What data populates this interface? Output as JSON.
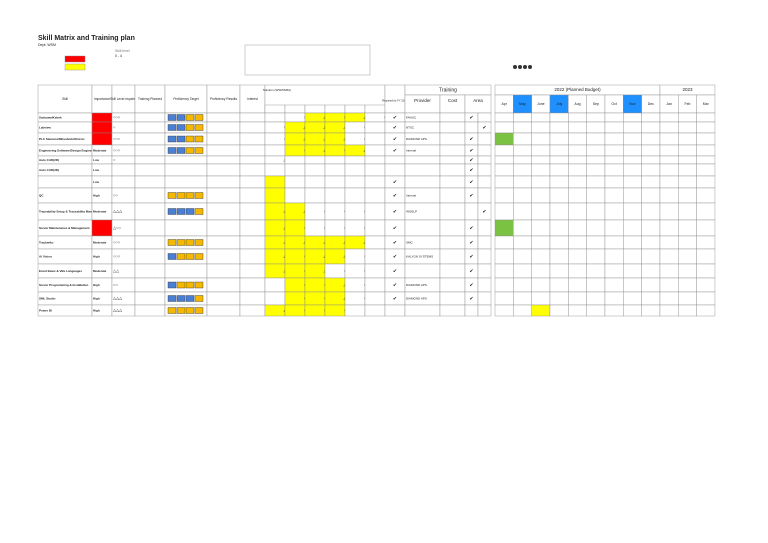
{
  "header": {
    "title": "Skill Matrix and Training plan",
    "dept": "Dept: WSM"
  },
  "legend": {
    "level_title": "Skill level",
    "level_range": "0 - 4"
  },
  "columns": {
    "skill": "Skill",
    "importance": "Importance",
    "level": "Skill Level required",
    "planned": "Training Planned",
    "target": "Proficiency Target",
    "results": "Proficiency Results",
    "interest": "Interest",
    "solution": "Solution (WSM/SMA)",
    "required": "Required for FY 22/23",
    "training": "Training",
    "provider": "Provider",
    "cost": "Cost",
    "area": "Area"
  },
  "calendar": {
    "y2022": "2022 (Planned Budget)",
    "y2023": "2023",
    "months": [
      "Apr",
      "May",
      "June",
      "July",
      "Aug",
      "Sep",
      "Oct",
      "Nov",
      "Dec",
      "Jan",
      "Feb",
      "Mar"
    ]
  },
  "rows": [
    {
      "skill": "Sadsawa/Kebek",
      "importance": null,
      "level": "○○○",
      "solution": [
        null,
        "○",
        "△",
        "○",
        "△",
        "○"
      ],
      "required": "✔",
      "provider": "FANUC",
      "area": [
        "✔",
        null
      ]
    },
    {
      "skill": "Labview",
      "importance": null,
      "level": "○",
      "solution": [
        "○",
        "△",
        "△",
        "△",
        "○",
        null
      ],
      "required": "✔",
      "provider": "NTSC",
      "area": [
        null,
        "✔"
      ]
    },
    {
      "skill": "PLC Siemens/Mitsubishi/Omron",
      "importance": null,
      "level": "○○○",
      "solution": [
        "○",
        "△",
        "△",
        "△",
        "○",
        null
      ],
      "required": "✔",
      "provider": "DIAMOND APS",
      "area": [
        "✔",
        null
      ]
    },
    {
      "skill": "Engineering Software/Design Engines",
      "importance": "Moderate",
      "level": "○○○",
      "solution": [
        null,
        "○",
        "△",
        "○",
        "△",
        null
      ],
      "required": "✔",
      "provider": "Internal",
      "area": [
        "✔",
        null
      ]
    },
    {
      "skill": "Auto CAD(2D)",
      "importance": "Low",
      "level": "○",
      "solution": [
        "△",
        null,
        null,
        null,
        null,
        null
      ],
      "required": null,
      "provider": null,
      "area": [
        "✔",
        null
      ]
    },
    {
      "skill": "Auto CAD(3D)",
      "importance": "Low",
      "level": null,
      "solution": [
        null,
        null,
        null,
        null,
        null,
        null
      ],
      "required": null,
      "provider": null,
      "area": [
        "✔",
        null
      ]
    },
    {
      "skill": null,
      "importance": "Low",
      "level": null,
      "solution": [
        null,
        null,
        null,
        null,
        null,
        null
      ],
      "required": "✔",
      "provider": null,
      "area": [
        "✔",
        null
      ]
    },
    {
      "skill": "QC",
      "importance": "High",
      "level": "○○",
      "solution": [
        null,
        null,
        null,
        null,
        null,
        null
      ],
      "required": "✔",
      "provider": "Internal",
      "area": [
        "✔",
        null
      ]
    },
    {
      "skill": "Traceability Setup & Traceability Management",
      "importance": "Moderate",
      "level": "△△△",
      "solution": [
        "△",
        "△",
        "○",
        "○",
        "○",
        null
      ],
      "required": "✔",
      "provider": "INGELP",
      "area": [
        null,
        "✔"
      ]
    },
    {
      "skill": "Server Maintenance & Management",
      "importance": null,
      "level": "△○○",
      "solution": [
        "△",
        "○",
        "○",
        "○",
        "○",
        null
      ],
      "required": "✔",
      "provider": null,
      "area": [
        "✔",
        null
      ]
    },
    {
      "skill": "Trackwiko",
      "importance": "Moderate",
      "level": "○○○",
      "solution": [
        "△",
        "△",
        "△",
        "△",
        "△",
        null
      ],
      "required": "✔",
      "provider": "SMC",
      "area": [
        "✔",
        null
      ]
    },
    {
      "skill": "AI Vision",
      "importance": "High",
      "level": "○○○",
      "solution": [
        "△",
        "○",
        "△",
        "△",
        "○",
        null
      ],
      "required": "✔",
      "provider": "KALYON SYSTEMS",
      "area": [
        "✔",
        null
      ]
    },
    {
      "skill": "Excel Basic & VBs Languages",
      "importance": "Moderate",
      "level": "△△",
      "solution": [
        "△",
        "○",
        "△",
        "○",
        "○",
        null
      ],
      "required": "✔",
      "provider": null,
      "area": [
        "✔",
        null
      ]
    },
    {
      "skill": "Server Programming & Installation",
      "importance": "High",
      "level": "○○",
      "solution": [
        null,
        "○",
        "○",
        "△",
        "○",
        null
      ],
      "required": "✔",
      "provider": "DIAMOND APS",
      "area": [
        "✔",
        null
      ]
    },
    {
      "skill": "SML Studio",
      "importance": "High",
      "level": "△△△",
      "solution": [
        null,
        "○",
        "○",
        "△",
        "○",
        null
      ],
      "required": "✔",
      "provider": "DIAMOND APS",
      "area": [
        "✔",
        null
      ]
    },
    {
      "skill": "Power BI",
      "importance": "High",
      "level": "△△△",
      "solution": [
        "△",
        "○",
        "○",
        "○",
        null,
        null
      ],
      "required": null,
      "provider": null,
      "area": [
        null,
        null
      ]
    }
  ]
}
